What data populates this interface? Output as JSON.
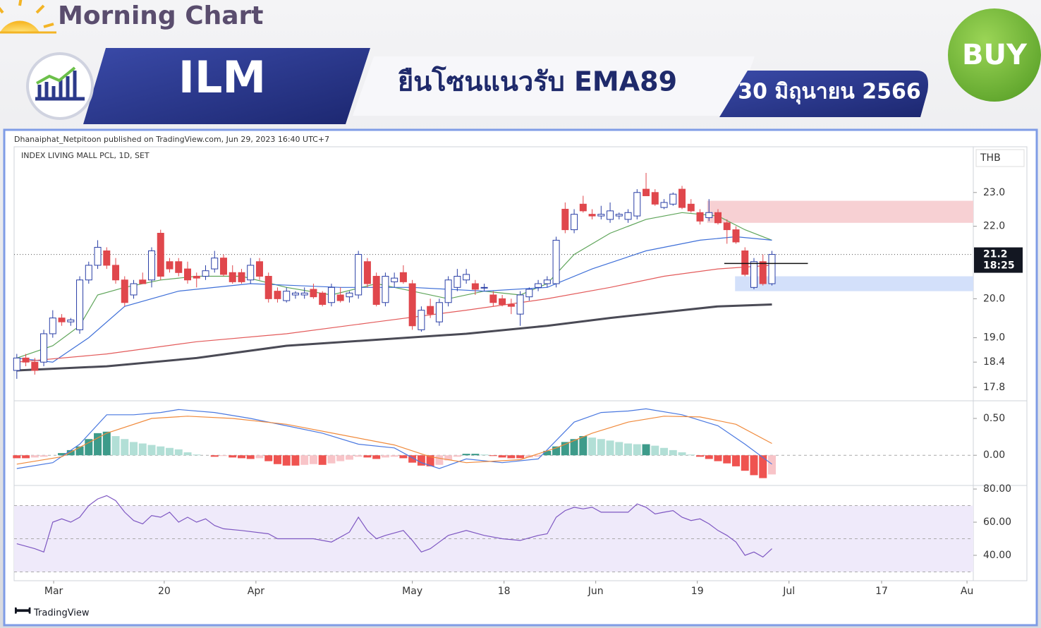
{
  "header": {
    "brand": "Morning Chart",
    "ticker": "ILM",
    "headline": "ยืนโซนแนวรับ EMA89",
    "date": "30 มิถุนายน 2566",
    "signal": "BUY"
  },
  "footer": "TradingView",
  "chart_data": [
    {
      "type": "candlestick",
      "source": "Dhanaiphat_Netpitoon published on TradingView.com, Jun 29, 2023 16:40 UTC+7",
      "title": "INDEX LIVING MALL PCL, 1D, SET",
      "currency": "THB",
      "log_scale": true,
      "ylim": [
        17.52,
        24.38
      ],
      "yticks": [
        {
          "value": 23,
          "label": "23.0"
        },
        {
          "value": 22,
          "label": "22.0"
        },
        {
          "value": 20,
          "label": "20.0"
        },
        {
          "value": 19,
          "label": "19.0"
        },
        18.4,
        17.8
      ],
      "up_color": "#2a3fa6",
      "down_color": "#e0474c",
      "candles": [
        [
          18.2,
          18.6,
          18.0,
          18.5
        ],
        [
          18.5,
          18.6,
          18.3,
          18.4
        ],
        [
          18.4,
          18.5,
          18.1,
          18.2
        ],
        [
          18.4,
          19.2,
          18.3,
          19.1
        ],
        [
          19.1,
          19.7,
          19.0,
          19.5
        ],
        [
          19.5,
          19.6,
          19.3,
          19.4
        ],
        [
          19.4,
          19.5,
          19.3,
          19.45
        ],
        [
          19.2,
          20.6,
          19.1,
          20.5
        ],
        [
          20.5,
          21.0,
          20.4,
          20.9
        ],
        [
          20.9,
          21.6,
          20.8,
          21.4
        ],
        [
          21.3,
          21.4,
          20.8,
          20.9
        ],
        [
          20.9,
          21.1,
          20.4,
          20.5
        ],
        [
          20.5,
          20.6,
          19.8,
          19.9
        ],
        [
          20.1,
          20.5,
          20.0,
          20.4
        ],
        [
          20.5,
          20.7,
          20.4,
          20.4
        ],
        [
          20.5,
          21.4,
          20.3,
          21.3
        ],
        [
          21.8,
          21.9,
          20.5,
          20.6
        ],
        [
          21.0,
          21.1,
          20.7,
          20.8
        ],
        [
          21.0,
          21.1,
          20.6,
          20.7
        ],
        [
          20.8,
          21.0,
          20.4,
          20.5
        ],
        [
          20.6,
          20.7,
          20.3,
          20.55
        ],
        [
          20.6,
          20.9,
          20.5,
          20.75
        ],
        [
          20.8,
          21.3,
          20.7,
          21.1
        ],
        [
          21.1,
          21.2,
          20.6,
          20.65
        ],
        [
          20.7,
          20.9,
          20.4,
          20.45
        ],
        [
          20.7,
          20.8,
          20.4,
          20.45
        ],
        [
          20.5,
          21.1,
          20.4,
          20.9
        ],
        [
          21.0,
          21.1,
          20.5,
          20.6
        ],
        [
          20.6,
          20.7,
          19.9,
          20.0
        ],
        [
          20.2,
          20.3,
          19.9,
          20.0
        ],
        [
          19.95,
          20.3,
          19.9,
          20.2
        ],
        [
          20.1,
          20.2,
          20.0,
          20.15
        ],
        [
          20.1,
          20.3,
          20.0,
          20.15
        ],
        [
          20.25,
          20.4,
          20.0,
          20.05
        ],
        [
          20.15,
          20.2,
          19.8,
          19.85
        ],
        [
          19.9,
          20.4,
          19.8,
          20.3
        ],
        [
          20.1,
          20.3,
          19.9,
          19.95
        ],
        [
          20.05,
          20.2,
          19.9,
          20.15
        ],
        [
          20.1,
          21.3,
          20.0,
          21.2
        ],
        [
          21.0,
          21.1,
          20.3,
          20.4
        ],
        [
          20.6,
          20.7,
          19.8,
          19.85
        ],
        [
          19.9,
          20.7,
          19.8,
          20.6
        ],
        [
          20.45,
          20.7,
          20.3,
          20.55
        ],
        [
          20.7,
          20.9,
          20.4,
          20.45
        ],
        [
          20.4,
          20.5,
          19.2,
          19.3
        ],
        [
          19.2,
          19.8,
          19.15,
          19.7
        ],
        [
          19.8,
          20.0,
          19.5,
          19.6
        ],
        [
          19.4,
          20.0,
          19.3,
          19.9
        ],
        [
          19.9,
          20.6,
          19.8,
          20.5
        ],
        [
          20.3,
          20.8,
          20.2,
          20.6
        ],
        [
          20.5,
          20.8,
          20.4,
          20.65
        ],
        [
          20.4,
          20.5,
          20.1,
          20.25
        ],
        [
          20.3,
          20.4,
          20.2,
          20.3
        ],
        [
          20.1,
          20.2,
          19.8,
          19.9
        ],
        [
          20.0,
          20.1,
          19.8,
          19.85
        ],
        [
          19.85,
          20.0,
          19.6,
          19.8
        ],
        [
          19.6,
          20.2,
          19.3,
          20.1
        ],
        [
          20.05,
          20.3,
          19.95,
          20.25
        ],
        [
          20.3,
          20.5,
          20.2,
          20.4
        ],
        [
          20.4,
          20.6,
          20.3,
          20.5
        ],
        [
          20.4,
          21.7,
          20.3,
          21.6
        ],
        [
          22.5,
          22.7,
          21.8,
          21.9
        ],
        [
          21.9,
          22.5,
          21.8,
          22.35
        ],
        [
          22.65,
          22.9,
          22.4,
          22.45
        ],
        [
          22.35,
          22.5,
          22.2,
          22.3
        ],
        [
          22.3,
          22.6,
          22.2,
          22.35
        ],
        [
          22.2,
          22.7,
          22.1,
          22.45
        ],
        [
          22.3,
          22.4,
          22.2,
          22.35
        ],
        [
          22.2,
          22.5,
          22.1,
          22.4
        ],
        [
          22.3,
          23.1,
          22.2,
          23.0
        ],
        [
          23.1,
          23.6,
          22.9,
          22.9
        ],
        [
          23.0,
          23.1,
          22.6,
          22.65
        ],
        [
          22.55,
          22.8,
          22.5,
          22.7
        ],
        [
          22.65,
          23.0,
          22.6,
          22.95
        ],
        [
          23.1,
          23.2,
          22.5,
          22.55
        ],
        [
          22.65,
          22.8,
          22.4,
          22.45
        ],
        [
          22.4,
          22.5,
          22.05,
          22.15
        ],
        [
          22.25,
          22.8,
          22.15,
          22.4
        ],
        [
          22.4,
          22.5,
          22.05,
          22.1
        ],
        [
          22.1,
          22.2,
          21.5,
          21.9
        ],
        [
          21.9,
          22.0,
          21.5,
          21.55
        ],
        [
          21.3,
          21.4,
          20.6,
          20.65
        ],
        [
          20.3,
          21.1,
          20.25,
          21.0
        ],
        [
          21.0,
          21.2,
          20.35,
          20.4
        ],
        [
          20.4,
          21.3,
          20.35,
          21.2
        ]
      ],
      "lines": [
        {
          "color": "#5fa55a",
          "x": [
            0,
            4,
            7,
            9,
            12,
            16,
            20,
            25,
            30,
            35,
            40,
            44,
            48,
            52,
            56,
            59,
            62,
            66,
            70,
            74,
            78,
            81,
            84
          ],
          "values": [
            18.5,
            18.8,
            19.3,
            20.1,
            20.3,
            20.5,
            20.6,
            20.6,
            20.3,
            20.1,
            20.4,
            20.2,
            20.0,
            20.2,
            20.1,
            20.4,
            21.2,
            21.8,
            22.2,
            22.4,
            22.3,
            21.9,
            21.6
          ]
        },
        {
          "color": "#3e6fd8",
          "x": [
            0,
            4,
            8,
            12,
            18,
            26,
            36,
            44,
            52,
            59,
            64,
            70,
            76,
            80,
            84
          ],
          "values": [
            18.5,
            18.4,
            19.0,
            19.8,
            20.2,
            20.4,
            20.3,
            20.3,
            20.2,
            20.3,
            20.8,
            21.3,
            21.6,
            21.7,
            21.6
          ]
        },
        {
          "color": "#e35a5a",
          "x": [
            0,
            10,
            20,
            30,
            40,
            50,
            59,
            66,
            72,
            78,
            84
          ],
          "values": [
            18.4,
            18.6,
            18.9,
            19.1,
            19.4,
            19.7,
            20.0,
            20.3,
            20.6,
            20.8,
            20.9
          ]
        },
        {
          "color": "#4a4a55",
          "x": [
            0,
            10,
            20,
            30,
            40,
            50,
            59,
            66,
            72,
            78,
            84
          ],
          "values": [
            18.2,
            18.3,
            18.5,
            18.8,
            18.95,
            19.1,
            19.3,
            19.5,
            19.65,
            19.8,
            19.85
          ]
        }
      ],
      "zones": [
        {
          "from": 22.1,
          "to": 22.75,
          "x": 76.8,
          "color": "#f7d0d3"
        },
        {
          "from": 20.2,
          "to": 20.6,
          "x": 79.9,
          "color": "#d3e0fa"
        }
      ],
      "level": {
        "value": 20.95,
        "x": [
          78.7,
          88
        ],
        "color": "#111111"
      },
      "last_price": 21.2,
      "countdown": "18:25"
    },
    {
      "type": "macd",
      "ylim": [
        -0.4,
        0.72
      ],
      "yticks": [
        {
          "value": 0.5,
          "label": "0.50"
        },
        {
          "value": 0,
          "label": "0.00"
        }
      ],
      "histogram": [
        -0.04,
        -0.04,
        -0.03,
        -0.02,
        0.0,
        0.03,
        0.07,
        0.12,
        0.22,
        0.3,
        0.32,
        0.26,
        0.22,
        0.18,
        0.16,
        0.14,
        0.12,
        0.1,
        0.08,
        0.04,
        0.01,
        0.0,
        -0.02,
        -0.01,
        -0.03,
        -0.04,
        -0.05,
        -0.04,
        -0.08,
        -0.12,
        -0.14,
        -0.14,
        -0.13,
        -0.12,
        -0.13,
        -0.11,
        -0.08,
        -0.06,
        -0.02,
        -0.03,
        -0.05,
        -0.03,
        -0.02,
        -0.04,
        -0.1,
        -0.14,
        -0.15,
        -0.13,
        -0.07,
        -0.02,
        0.02,
        0.02,
        0.01,
        -0.01,
        -0.03,
        -0.04,
        -0.04,
        -0.03,
        -0.02,
        0.06,
        0.12,
        0.18,
        0.22,
        0.26,
        0.24,
        0.22,
        0.2,
        0.18,
        0.16,
        0.15,
        0.15,
        0.13,
        0.1,
        0.07,
        0.04,
        0.01,
        -0.02,
        -0.05,
        -0.08,
        -0.11,
        -0.15,
        -0.21,
        -0.27,
        -0.31,
        -0.26
      ],
      "lines": [
        {
          "color": "#4a78e0",
          "x": [
            0,
            4,
            7,
            10,
            13,
            16,
            18,
            22,
            26,
            30,
            34,
            38,
            42,
            45,
            47,
            50,
            54,
            58,
            62,
            65,
            68,
            70,
            74,
            78,
            81,
            84
          ],
          "values": [
            -0.18,
            -0.1,
            0.15,
            0.55,
            0.55,
            0.58,
            0.62,
            0.58,
            0.5,
            0.4,
            0.3,
            0.15,
            0.1,
            -0.1,
            -0.18,
            -0.05,
            -0.1,
            -0.05,
            0.45,
            0.58,
            0.6,
            0.63,
            0.55,
            0.4,
            0.15,
            -0.12
          ]
        },
        {
          "color": "#f08a3c",
          "x": [
            0,
            5,
            10,
            15,
            19,
            24,
            30,
            36,
            42,
            46,
            50,
            56,
            60,
            64,
            68,
            72,
            76,
            80,
            84
          ],
          "values": [
            -0.12,
            -0.02,
            0.3,
            0.5,
            0.53,
            0.5,
            0.42,
            0.28,
            0.14,
            -0.02,
            -0.1,
            -0.06,
            0.1,
            0.3,
            0.45,
            0.53,
            0.52,
            0.42,
            0.16
          ]
        }
      ]
    },
    {
      "type": "rsi",
      "ylim": [
        25.1,
        81.3
      ],
      "yticks": [
        {
          "value": 80,
          "label": "80.00"
        },
        {
          "value": 60,
          "label": "60.00"
        },
        {
          "value": 40,
          "label": "40.00"
        }
      ],
      "band": [
        30,
        70
      ],
      "levels": [
        70,
        50,
        30
      ],
      "color": "#7e57c2",
      "x": [
        0,
        2,
        3,
        4,
        5,
        6,
        7,
        8,
        9,
        10,
        11,
        12,
        13,
        14,
        15,
        16,
        17,
        18,
        19,
        20,
        21,
        22,
        23,
        25,
        28,
        29,
        31,
        33,
        35,
        36,
        37,
        38,
        39,
        40,
        41,
        43,
        44,
        45,
        46,
        47,
        48,
        50,
        52,
        54,
        56,
        58,
        59,
        60,
        61,
        62,
        63,
        64,
        65,
        67,
        68,
        69,
        70,
        71,
        72,
        73,
        74,
        75,
        76,
        77,
        78,
        79,
        80,
        81,
        82,
        83,
        84
      ],
      "values": [
        47,
        44,
        42,
        60,
        62,
        60,
        63,
        70,
        74,
        76,
        73,
        66,
        61,
        59,
        64,
        63,
        66,
        60,
        63,
        60,
        62,
        58,
        56,
        55,
        53,
        50,
        50,
        50,
        48,
        51,
        54,
        63,
        55,
        50,
        52,
        55,
        49,
        42,
        44,
        48,
        52,
        55,
        52,
        50,
        49,
        52,
        53,
        63,
        67,
        69,
        68,
        69,
        66,
        66,
        66,
        71,
        69,
        65,
        66,
        67,
        63,
        61,
        62,
        59,
        55,
        52,
        48,
        40,
        42,
        39,
        44
      ],
      "xlim": [
        -0.3,
        106.4
      ],
      "xticks": [
        {
          "value": 4.1,
          "label": "Mar"
        },
        {
          "value": 16.4,
          "label": "20"
        },
        {
          "value": 26.6,
          "label": "Apr"
        },
        {
          "value": 44.0,
          "label": "May"
        },
        {
          "value": 54.2,
          "label": "18"
        },
        {
          "value": 64.4,
          "label": "Jun"
        },
        {
          "value": 75.7,
          "label": "19"
        },
        {
          "value": 85.9,
          "label": "Jul"
        },
        {
          "value": 96.2,
          "label": "17"
        },
        {
          "value": 105.7,
          "label": "Au"
        }
      ]
    }
  ]
}
